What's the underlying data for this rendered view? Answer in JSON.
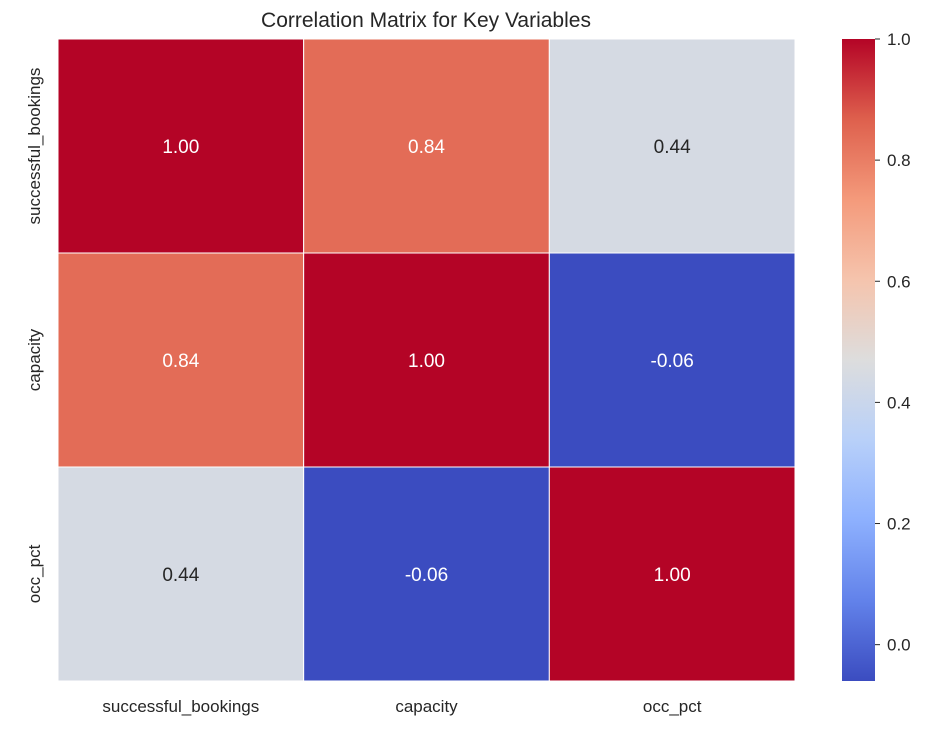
{
  "chart_data": {
    "type": "heatmap",
    "title": "Correlation Matrix for Key Variables",
    "xlabel": "",
    "ylabel": "",
    "x_categories": [
      "successful_bookings",
      "capacity",
      "occ_pct"
    ],
    "y_categories": [
      "successful_bookings",
      "capacity",
      "occ_pct"
    ],
    "values": [
      [
        1.0,
        0.84,
        0.44
      ],
      [
        0.84,
        1.0,
        -0.06
      ],
      [
        0.44,
        -0.06,
        1.0
      ]
    ],
    "cell_labels": [
      [
        "1.00",
        "0.84",
        "0.44"
      ],
      [
        "0.84",
        "1.00",
        "-0.06"
      ],
      [
        "0.44",
        "-0.06",
        "1.00"
      ]
    ],
    "colormap": "coolwarm",
    "colorbar": {
      "min": -0.06,
      "max": 1.0,
      "ticks": [
        0.0,
        0.2,
        0.4,
        0.6,
        0.8,
        1.0
      ],
      "tick_labels": [
        "0.0",
        "0.2",
        "0.4",
        "0.6",
        "0.8",
        "1.0"
      ]
    },
    "colors": {
      "text_dark": "#262626",
      "text_light": "#ffffff",
      "cell_border": "#ffffff"
    }
  }
}
